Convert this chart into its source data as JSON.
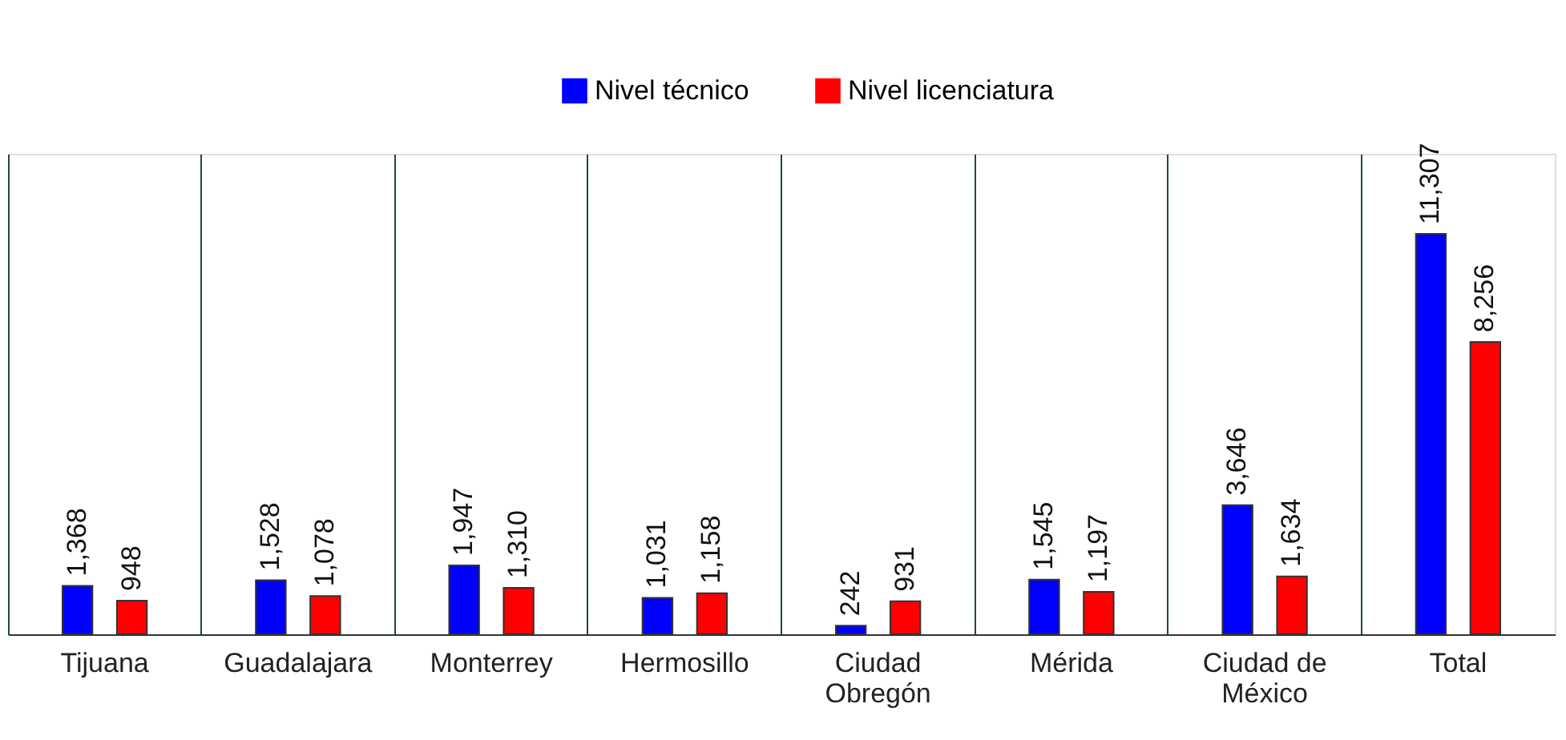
{
  "chart_data": {
    "type": "bar",
    "categories": [
      "Tijuana",
      "Guadalajara",
      "Monterrey",
      "Hermosillo",
      "Ciudad Obregón",
      "Mérida",
      "Ciudad de México",
      "Total"
    ],
    "series": [
      {
        "name": "Nivel técnico",
        "color": "#0000ff",
        "values": [
          1368,
          1528,
          1947,
          1031,
          242,
          1545,
          3646,
          11307
        ],
        "value_labels": [
          "1,368",
          "1,528",
          "1,947",
          "1,031",
          "242",
          "1,545",
          "3,646",
          "11,307"
        ]
      },
      {
        "name": "Nivel licenciatura",
        "color": "#ff0000",
        "values": [
          948,
          1078,
          1310,
          1158,
          931,
          1197,
          1634,
          8256
        ],
        "value_labels": [
          "948",
          "1,078",
          "1,310",
          "1,158",
          "931",
          "1,197",
          "1,634",
          "8,256"
        ]
      }
    ],
    "legend": "top",
    "grid": "x",
    "tick_labels": "x"
  }
}
